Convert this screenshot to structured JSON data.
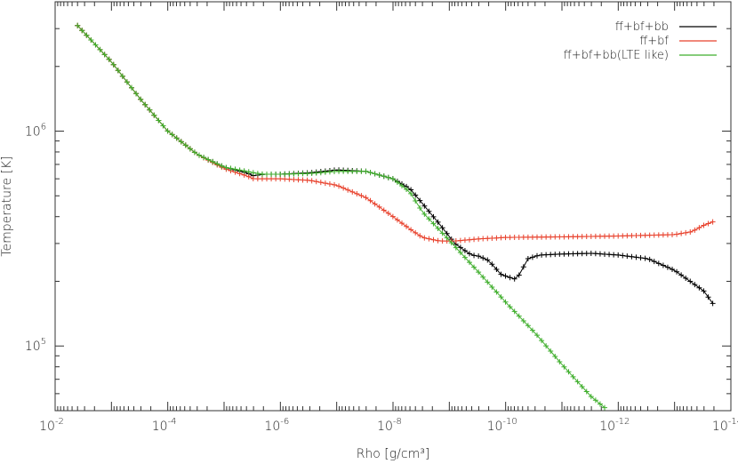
{
  "chart_data": {
    "type": "line",
    "title": "",
    "xlabel": "Rho [g/cm³]",
    "ylabel": "Temperature [K]",
    "x_scale": "log",
    "y_scale": "log",
    "x_axis_direction": "decreasing to the right",
    "xlim": [
      0.01,
      1e-14
    ],
    "ylim": [
      50000,
      4000000
    ],
    "x_ticks": [
      {
        "value": 0.01,
        "base": "10",
        "exp": "-2"
      },
      {
        "value": 0.0001,
        "base": "10",
        "exp": "-4"
      },
      {
        "value": 1e-06,
        "base": "10",
        "exp": "-6"
      },
      {
        "value": 1e-08,
        "base": "10",
        "exp": "-8"
      },
      {
        "value": 1e-10,
        "base": "10",
        "exp": "-10"
      },
      {
        "value": 1e-12,
        "base": "10",
        "exp": "-12"
      },
      {
        "value": 1e-14,
        "base": "10",
        "exp": "-14"
      }
    ],
    "y_ticks": [
      {
        "value": 100000,
        "base": "10",
        "exp": "5"
      },
      {
        "value": 1000000,
        "base": "10",
        "exp": "6"
      }
    ],
    "grid": false,
    "legend_position": "top-right",
    "marker": "plus",
    "series": [
      {
        "name": "ff+bf+bb",
        "color": "#000000",
        "x": [
          0.004,
          0.001,
          0.0003,
          0.0001,
          3e-05,
          1e-05,
          4e-06,
          3e-06,
          2e-06,
          1e-06,
          3e-07,
          1e-07,
          3e-08,
          1e-08,
          5e-09,
          3e-09,
          1.5e-09,
          8e-10,
          5e-10,
          4e-10,
          3e-10,
          2e-10,
          1.2e-10,
          7e-11,
          6e-11,
          4e-11,
          2.5e-11,
          1e-11,
          3e-12,
          1e-12,
          3e-13,
          1e-13,
          3e-14,
          2e-14
        ],
        "y": [
          3100000,
          2100000,
          1400000,
          1000000,
          780000,
          680000,
          640000,
          620000,
          630000,
          630000,
          640000,
          660000,
          650000,
          600000,
          540000,
          460000,
          370000,
          300000,
          275000,
          265000,
          262000,
          250000,
          215000,
          205000,
          210000,
          255000,
          265000,
          268000,
          270000,
          265000,
          255000,
          225000,
          180000,
          155000
        ]
      },
      {
        "name": "ff+bf",
        "color": "#e8412c",
        "x": [
          0.004,
          0.001,
          0.0003,
          0.0001,
          3e-05,
          1e-05,
          4e-06,
          3e-06,
          2e-06,
          1e-06,
          3e-07,
          1e-07,
          3e-08,
          1e-08,
          5e-09,
          3e-09,
          1.5e-09,
          8e-10,
          3e-10,
          1e-10,
          1e-11,
          1e-12,
          1e-13,
          5e-14,
          3e-14,
          2e-14
        ],
        "y": [
          3100000,
          2100000,
          1400000,
          1000000,
          780000,
          670000,
          620000,
          600000,
          600000,
          600000,
          590000,
          560000,
          490000,
          400000,
          350000,
          320000,
          308000,
          308000,
          315000,
          320000,
          322000,
          325000,
          330000,
          340000,
          365000,
          380000
        ]
      },
      {
        "name": "ff+bf+bb(LTE like)",
        "color": "#3fae2c",
        "x": [
          0.004,
          0.001,
          0.0003,
          0.0001,
          3e-05,
          1e-05,
          4e-06,
          3e-06,
          2e-06,
          1e-06,
          3e-07,
          1e-07,
          3e-08,
          1e-08,
          5e-09,
          3e-09,
          1e-09,
          3e-10,
          1e-10,
          3e-11,
          1e-11,
          3e-12,
          1.5e-12
        ],
        "y": [
          3100000,
          2100000,
          1400000,
          1000000,
          780000,
          680000,
          650000,
          640000,
          630000,
          630000,
          635000,
          650000,
          650000,
          600000,
          520000,
          420000,
          310000,
          220000,
          160000,
          115000,
          82000,
          58000,
          50000
        ]
      }
    ]
  }
}
